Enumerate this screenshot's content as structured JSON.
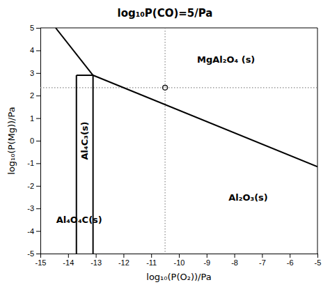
{
  "chart_data": {
    "type": "line",
    "title": "log₁₀P(CO)=5/Pa",
    "xlabel": "log₁₀(P(O₂))/Pa",
    "ylabel": "log₁₀(P(Mg))/Pa",
    "xlim": [
      -15,
      -5
    ],
    "ylim": [
      -5,
      5
    ],
    "xticks": [
      -15,
      -14,
      -13,
      -12,
      -11,
      -10,
      -9,
      -8,
      -7,
      -6,
      -5
    ],
    "yticks": [
      -5,
      -4,
      -3,
      -2,
      -1,
      0,
      1,
      2,
      3,
      4,
      5
    ],
    "grid": false,
    "series": [
      {
        "x": [
          -14.45,
          -13.1
        ],
        "values": [
          5.0,
          2.9
        ],
        "color": "#000000",
        "line_style": "solid"
      },
      {
        "x": [
          -13.1,
          -5.0
        ],
        "values": [
          2.9,
          -1.15
        ],
        "color": "#000000",
        "line_style": "solid"
      },
      {
        "x": [
          -13.7,
          -13.1
        ],
        "values": [
          2.9,
          2.9
        ],
        "color": "#000000",
        "line_style": "solid"
      },
      {
        "x": [
          -13.7,
          -13.7
        ],
        "values": [
          -5.0,
          2.9
        ],
        "color": "#000000",
        "line_style": "solid"
      },
      {
        "x": [
          -13.1,
          -13.1
        ],
        "values": [
          -5.0,
          2.9
        ],
        "color": "#000000",
        "line_style": "solid"
      },
      {
        "type": "scatter",
        "x": [
          -10.5
        ],
        "values": [
          2.35
        ],
        "color": "#000000",
        "marker": "circle"
      }
    ],
    "vline": {
      "value": -10.5,
      "color": "#888888",
      "line_style": "dotted"
    },
    "hline": {
      "value": 2.35,
      "color": "#888888",
      "line_style": "dotted"
    },
    "annotations": [
      {
        "text": "MgAl₂O₄ (s)",
        "x": -8.3,
        "y": 3.6
      },
      {
        "text": "Al₂O₃(s)",
        "x": -7.5,
        "y": -2.5
      },
      {
        "text": "Al₄C₃(s)",
        "x": -13.4,
        "y": 0.0,
        "orientation": "vertical"
      },
      {
        "text": "Al₄O₄C(s)",
        "x": -13.6,
        "y": -3.5
      }
    ]
  }
}
